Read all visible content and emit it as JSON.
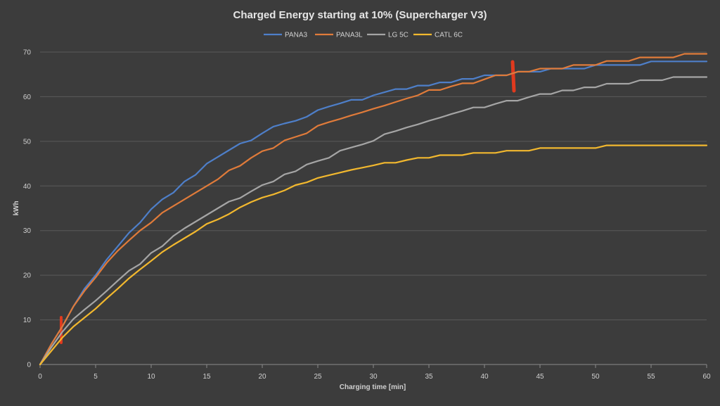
{
  "chart_data": {
    "type": "line",
    "title": "Charged Energy starting at 10% (Supercharger V3)",
    "xlabel": "Charging time [min]",
    "ylabel": "kWh",
    "xlim": [
      0,
      60
    ],
    "ylim": [
      0,
      70
    ],
    "xticks": [
      0,
      5,
      10,
      15,
      20,
      25,
      30,
      35,
      40,
      45,
      50,
      55,
      60
    ],
    "yticks": [
      0,
      10,
      20,
      30,
      40,
      50,
      60,
      70
    ],
    "grid": true,
    "legend_position": "top-center",
    "x": [
      0,
      1,
      2,
      3,
      4,
      5,
      6,
      7,
      8,
      9,
      10,
      11,
      12,
      13,
      14,
      15,
      16,
      17,
      18,
      19,
      20,
      21,
      22,
      23,
      24,
      25,
      26,
      27,
      28,
      29,
      30,
      31,
      32,
      33,
      34,
      35,
      36,
      37,
      38,
      39,
      40,
      41,
      42,
      43,
      44,
      45,
      46,
      47,
      48,
      49,
      50,
      51,
      52,
      53,
      54,
      55,
      56,
      57,
      58,
      59,
      60
    ],
    "series": [
      {
        "name": "PANA3",
        "color": "#4e7fc9",
        "values": [
          0,
          4.5,
          8.5,
          13,
          17,
          20,
          23.5,
          26.5,
          29.5,
          31.8,
          34.8,
          37,
          38.5,
          41,
          42.5,
          45,
          46.5,
          48,
          49.5,
          50.2,
          51.8,
          53.3,
          54,
          54.6,
          55.5,
          57,
          57.8,
          58.5,
          59.3,
          59.3,
          60.3,
          61,
          61.7,
          61.7,
          62.5,
          62.5,
          63.2,
          63.2,
          64,
          64,
          64.8,
          64.8,
          64.8,
          65.6,
          65.6,
          65.6,
          66.3,
          66.3,
          66.3,
          66.3,
          67.1,
          67.1,
          67.1,
          67.1,
          67.1,
          67.9,
          67.9,
          67.9,
          67.9,
          67.9,
          67.9
        ]
      },
      {
        "name": "PANA3L",
        "color": "#e07b3a",
        "values": [
          0,
          4.5,
          8.5,
          13,
          16.5,
          19.5,
          22.8,
          25.5,
          27.8,
          30,
          31.8,
          34,
          35.5,
          37,
          38.5,
          40,
          41.5,
          43.5,
          44.5,
          46.3,
          47.8,
          48.5,
          50.2,
          51,
          51.8,
          53.5,
          54.3,
          55,
          55.8,
          56.5,
          57.3,
          58,
          58.8,
          59.6,
          60.3,
          61.5,
          61.5,
          62.3,
          63,
          63,
          63.9,
          64.8,
          64.8,
          65.6,
          65.6,
          66.3,
          66.3,
          66.3,
          67.1,
          67.1,
          67.1,
          68,
          68,
          68,
          68.8,
          68.8,
          68.8,
          68.8,
          69.6,
          69.6,
          69.6
        ]
      },
      {
        "name": "LG 5C",
        "color": "#a5a5a5",
        "values": [
          0,
          3.8,
          7.3,
          10.2,
          12.3,
          14.3,
          16.5,
          18.8,
          21,
          22.5,
          25,
          26.5,
          28.8,
          30.5,
          32,
          33.5,
          35,
          36.5,
          37.3,
          38.8,
          40.2,
          41,
          42.6,
          43.3,
          44.8,
          45.6,
          46.3,
          47.9,
          48.6,
          49.3,
          50.1,
          51.6,
          52.3,
          53.1,
          53.8,
          54.6,
          55.3,
          56.1,
          56.8,
          57.6,
          57.6,
          58.4,
          59.1,
          59.1,
          59.9,
          60.6,
          60.6,
          61.4,
          61.4,
          62.1,
          62.1,
          62.9,
          62.9,
          62.9,
          63.7,
          63.7,
          63.7,
          64.4,
          64.4,
          64.4,
          64.4
        ]
      },
      {
        "name": "CATL 6C",
        "color": "#f2b82e",
        "values": [
          0,
          3,
          6,
          8.5,
          10.5,
          12.5,
          14.8,
          17,
          19.3,
          21.3,
          23.2,
          25.2,
          26.8,
          28.3,
          29.8,
          31.5,
          32.5,
          33.7,
          35.2,
          36.4,
          37.4,
          38.1,
          39,
          40.2,
          40.8,
          41.8,
          42.4,
          43,
          43.6,
          44.1,
          44.6,
          45.2,
          45.2,
          45.8,
          46.3,
          46.3,
          46.9,
          46.9,
          46.9,
          47.4,
          47.4,
          47.4,
          47.9,
          47.9,
          47.9,
          48.5,
          48.5,
          48.5,
          48.5,
          48.5,
          48.5,
          49.1,
          49.1,
          49.1,
          49.1,
          49.1,
          49.1,
          49.1,
          49.1,
          49.1,
          49.1
        ]
      }
    ]
  }
}
